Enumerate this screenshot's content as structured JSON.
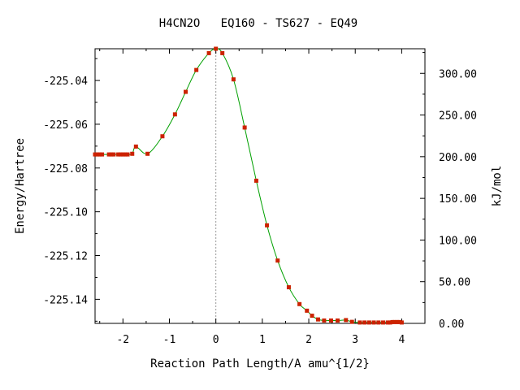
{
  "chart_data": {
    "type": "line",
    "title": "H4CN2O   EQ160 - TS627 - EQ49",
    "xlabel": "Reaction Path Length/A amu^{1/2}",
    "ylabel_left": "Energy/Hartree",
    "ylabel_right": "kJ/mol",
    "xlim": [
      -2.6,
      4.5
    ],
    "ylim_left": [
      -225.151,
      -225.0255
    ],
    "x_ticks": [
      -2,
      -1,
      0,
      1,
      2,
      3,
      4
    ],
    "x_tick_labels": [
      "-2",
      "-1",
      "0",
      "1",
      "2",
      "3",
      "4"
    ],
    "y_left_ticks": [
      -225.04,
      -225.06,
      -225.08,
      -225.1,
      -225.12,
      -225.14
    ],
    "y_left_tick_labels": [
      "-225.04",
      "-225.06",
      "-225.08",
      "-225.10",
      "-225.12",
      "-225.14"
    ],
    "y_right_ticks": [
      0,
      50,
      100,
      150,
      200,
      250,
      300
    ],
    "y_right_tick_labels": [
      "0.00",
      "50.00",
      "100.00",
      "150.00",
      "200.00",
      "250.00",
      "300.00"
    ],
    "right_axis_zero_at_left": -225.151,
    "hartree_to_kjmol": 2625.5,
    "vline_x": 0,
    "line_color": "#00a000",
    "marker_color": "#cc2200",
    "series": [
      {
        "x": [
          -2.6,
          -2.55,
          -2.5,
          -2.45,
          -2.3,
          -2.25,
          -2.2,
          -2.1,
          -2.05,
          -2.0,
          -1.95,
          -1.9,
          -1.8,
          -1.72,
          -1.47,
          -1.15,
          -0.88,
          -0.65,
          -0.42,
          -0.15,
          0.0,
          0.14,
          0.38,
          0.62,
          0.87,
          1.1,
          1.33,
          1.57,
          1.8,
          1.96,
          2.07,
          2.2,
          2.33,
          2.48,
          2.62,
          2.8,
          2.93,
          3.1,
          3.2,
          3.3,
          3.4,
          3.5,
          3.6,
          3.7,
          3.75,
          3.8,
          3.85,
          3.9,
          3.95,
          4.0
        ],
        "y": [
          -225.0738,
          -225.0738,
          -225.0738,
          -225.0738,
          -225.0738,
          -225.0738,
          -225.0738,
          -225.0738,
          -225.0738,
          -225.0738,
          -225.0738,
          -225.0738,
          -225.0735,
          -225.0702,
          -225.0735,
          -225.0655,
          -225.0555,
          -225.0452,
          -225.0352,
          -225.0275,
          -225.0255,
          -225.0275,
          -225.0395,
          -225.0615,
          -225.0858,
          -225.1062,
          -225.1223,
          -225.1345,
          -225.1422,
          -225.1452,
          -225.1475,
          -225.1492,
          -225.1497,
          -225.1497,
          -225.1497,
          -225.1495,
          -225.1503,
          -225.1506,
          -225.1506,
          -225.1506,
          -225.1506,
          -225.1506,
          -225.1506,
          -225.1506,
          -225.1506,
          -225.1504,
          -225.1504,
          -225.1504,
          -225.1504,
          -225.1506
        ]
      }
    ]
  }
}
